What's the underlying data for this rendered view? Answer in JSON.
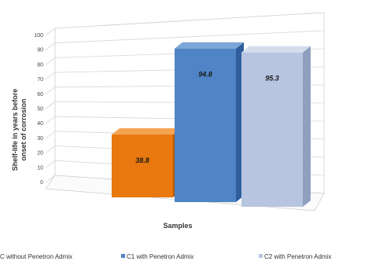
{
  "chart_data": {
    "type": "bar",
    "categories": [
      "C without Penetron Admix",
      "C1 with Penetron Admix",
      "C2 with Penetron Admix"
    ],
    "values": [
      38.8,
      94.8,
      95.3
    ],
    "data_labels": [
      "38.8",
      "94.8",
      "95.3"
    ],
    "ylabel_line1": "Shelf-life in years before",
    "ylabel_line2": "onset of corrosion",
    "xlabel": "Samples",
    "ylim": [
      0,
      100
    ],
    "yticks": [
      "0",
      "10",
      "20",
      "30",
      "40",
      "50",
      "60",
      "70",
      "80",
      "90",
      "100"
    ],
    "grid": true,
    "three_d": true,
    "legend_position": "bottom",
    "legend": [
      "C without Penetron Admix",
      "C1 with Penetron Admix",
      "C2 with Penetron Admix"
    ],
    "colors": {
      "front": [
        "#e8780f",
        "#4f84c6",
        "#b7c5e0"
      ],
      "side": [
        "#b45a06",
        "#2f5e9c",
        "#8f9fc0"
      ],
      "top": [
        "#f4a352",
        "#7da6d9",
        "#d5dded"
      ]
    }
  }
}
